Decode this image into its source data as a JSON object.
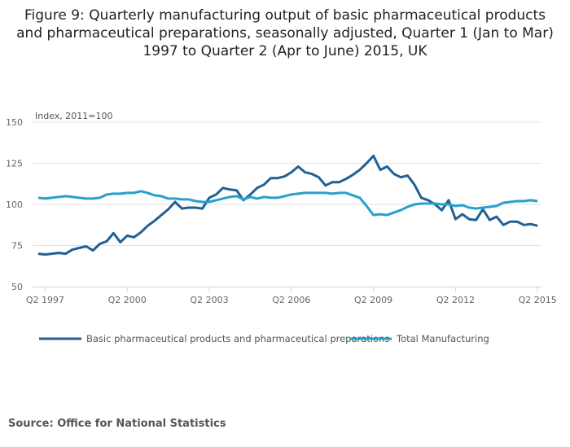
{
  "title": "Figure 9: Quarterly manufacturing output of basic pharmaceutical products and pharmaceutical preparations, seasonally adjusted, Quarter 1 (Jan to Mar) 1997 to Quarter 2 (Apr to June) 2015, UK",
  "source": "Source: Office for National Statistics",
  "chart_data": {
    "type": "line",
    "title": "Figure 9: Quarterly manufacturing output of basic pharmaceutical products and pharmaceutical preparations, seasonally adjusted, Quarter 1 (Jan to Mar) 1997 to Quarter 2 (Apr to June) 2015, UK",
    "ylabel": "Index, 2011=100",
    "xlabel": "",
    "ylim": [
      50,
      150
    ],
    "yticks": [
      50,
      75,
      100,
      125,
      150
    ],
    "x_start": "Q1 1997",
    "x_end": "Q2 2015",
    "xtick_labels": [
      "Q2 1997",
      "Q2 2000",
      "Q2 2003",
      "Q2 2006",
      "Q2 2009",
      "Q2 2012",
      "Q2 2015"
    ],
    "xtick_quarter_index": [
      1,
      13,
      25,
      37,
      49,
      61,
      73
    ],
    "grid": true,
    "legend_position": "bottom",
    "series": [
      {
        "name": "Basic pharmaceutical products and pharmaceutical preparations",
        "color": "#206095",
        "values": [
          70,
          69.5,
          70,
          70.5,
          70,
          72.5,
          73.5,
          74.5,
          72,
          76,
          77.5,
          82.5,
          77,
          81,
          80,
          83,
          87,
          90,
          93.5,
          97,
          101.5,
          97.5,
          98,
          98,
          97.5,
          104,
          106,
          110,
          109,
          108.5,
          102.5,
          106,
          110,
          112,
          116,
          116,
          117,
          119.5,
          123,
          119.5,
          118.5,
          116.5,
          111.5,
          113.5,
          113.5,
          115.5,
          118,
          121,
          125,
          129.5,
          121,
          123,
          118.5,
          116.5,
          117.5,
          112,
          104,
          102.5,
          100,
          96.5,
          102.5,
          91,
          94,
          91,
          90.5,
          97,
          90.5,
          92.5,
          87.5,
          89.5,
          89.5,
          87.5,
          88,
          87
        ]
      },
      {
        "name": "Total Manufacturing",
        "color": "#27a0cc",
        "values": [
          104,
          103.5,
          104,
          104.5,
          105,
          104.5,
          104,
          103.5,
          103.5,
          104,
          106,
          106.5,
          106.5,
          107,
          107,
          108,
          107,
          105.5,
          105,
          103.5,
          103.5,
          103,
          103,
          102,
          101.5,
          101.5,
          102.5,
          103.5,
          104.5,
          105,
          103,
          104.5,
          103.5,
          104.5,
          104,
          104,
          105,
          106,
          106.5,
          107,
          107,
          107,
          107,
          106.5,
          107,
          107,
          105.5,
          104,
          99,
          93.5,
          94,
          93.5,
          95,
          96.5,
          98.5,
          100,
          100.5,
          100.5,
          100.5,
          100,
          100,
          99,
          99.5,
          98,
          97.5,
          98,
          98.5,
          99,
          101,
          101.5,
          102,
          102,
          102.5,
          102
        ]
      }
    ]
  }
}
